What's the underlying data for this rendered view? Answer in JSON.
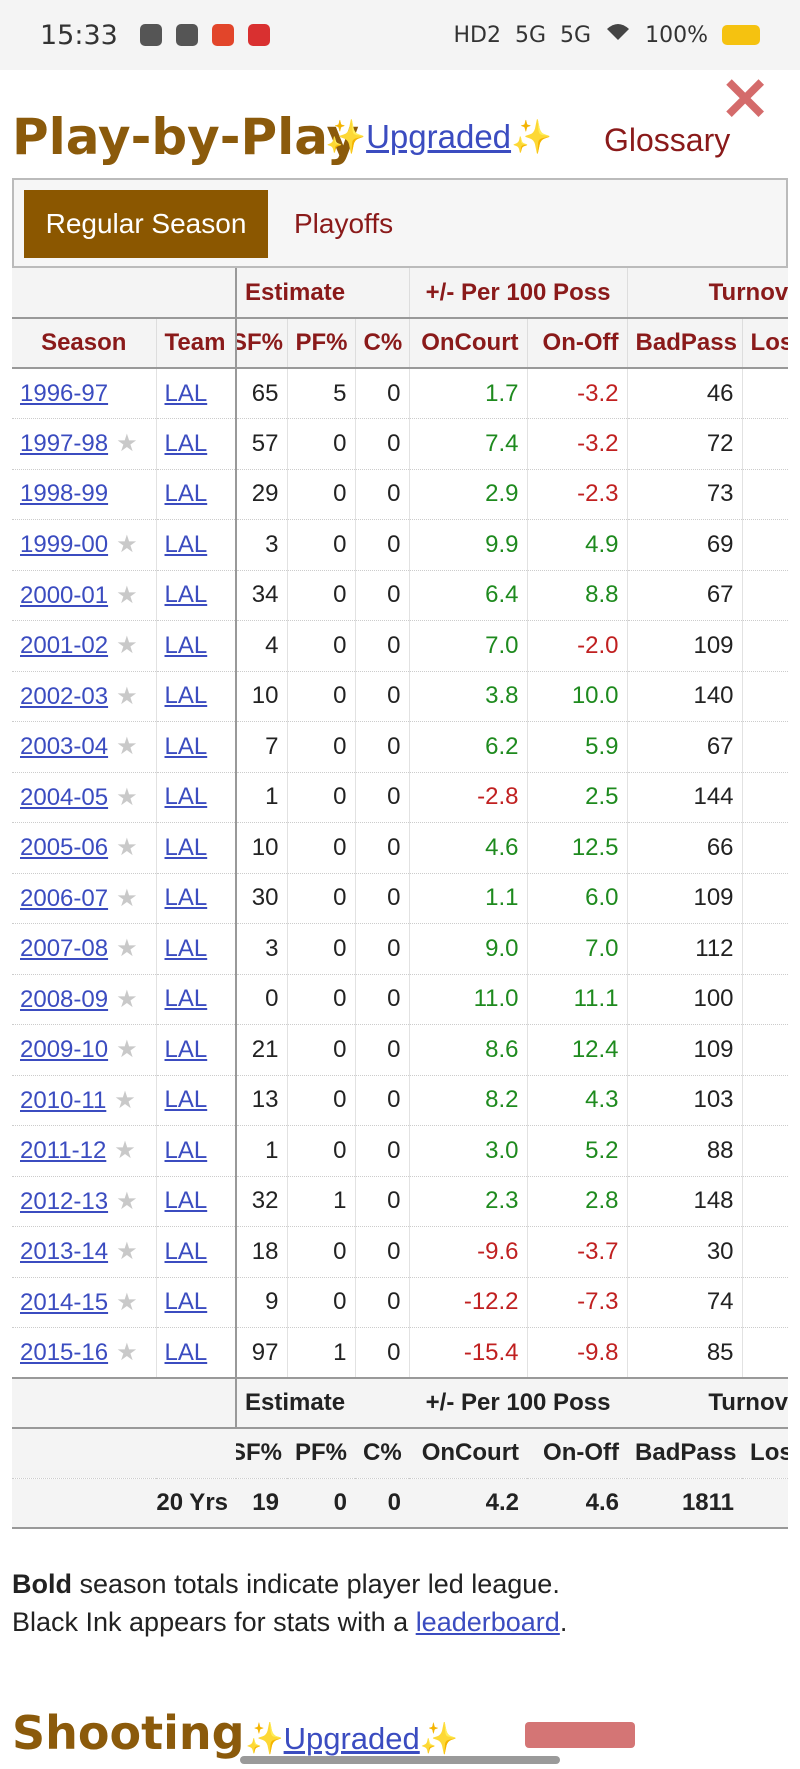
{
  "status": {
    "time": "15:33",
    "battery": "100%",
    "net1": "HD2",
    "net2": "5G",
    "net3": "5G"
  },
  "header": {
    "title": "Play-by-Play",
    "upgraded_prefix": "✨",
    "upgraded_label": "Upgraded",
    "upgraded_suffix": "✨",
    "glossary": "Glossary"
  },
  "tabs": {
    "regular": "Regular Season",
    "playoffs": "Playoffs"
  },
  "table": {
    "over_headers": {
      "estimate": "Estimate",
      "plusminus": "+/- Per 100 Poss",
      "turnover": "Turnover"
    },
    "columns": [
      "Season",
      "Team",
      "SF%",
      "PF%",
      "C%",
      "OnCourt",
      "On-Off",
      "BadPass",
      "Lost"
    ],
    "rows": [
      {
        "season": "1996-97",
        "star": "",
        "team": "LAL",
        "sf": "65",
        "pf": "5",
        "c": "0",
        "on": "1.7",
        "onoff": "-3.2",
        "bp": "46"
      },
      {
        "season": "1997-98",
        "star": "★",
        "team": "LAL",
        "sf": "57",
        "pf": "0",
        "c": "0",
        "on": "7.4",
        "onoff": "-3.2",
        "bp": "72"
      },
      {
        "season": "1998-99",
        "star": "",
        "team": "LAL",
        "sf": "29",
        "pf": "0",
        "c": "0",
        "on": "2.9",
        "onoff": "-2.3",
        "bp": "73"
      },
      {
        "season": "1999-00",
        "star": "★",
        "team": "LAL",
        "sf": "3",
        "pf": "0",
        "c": "0",
        "on": "9.9",
        "onoff": "4.9",
        "bp": "69"
      },
      {
        "season": "2000-01",
        "star": "★",
        "team": "LAL",
        "sf": "34",
        "pf": "0",
        "c": "0",
        "on": "6.4",
        "onoff": "8.8",
        "bp": "67"
      },
      {
        "season": "2001-02",
        "star": "★",
        "team": "LAL",
        "sf": "4",
        "pf": "0",
        "c": "0",
        "on": "7.0",
        "onoff": "-2.0",
        "bp": "109"
      },
      {
        "season": "2002-03",
        "star": "★",
        "team": "LAL",
        "sf": "10",
        "pf": "0",
        "c": "0",
        "on": "3.8",
        "onoff": "10.0",
        "bp": "140"
      },
      {
        "season": "2003-04",
        "star": "★",
        "team": "LAL",
        "sf": "7",
        "pf": "0",
        "c": "0",
        "on": "6.2",
        "onoff": "5.9",
        "bp": "67"
      },
      {
        "season": "2004-05",
        "star": "★",
        "team": "LAL",
        "sf": "1",
        "pf": "0",
        "c": "0",
        "on": "-2.8",
        "onoff": "2.5",
        "bp": "144"
      },
      {
        "season": "2005-06",
        "star": "★",
        "team": "LAL",
        "sf": "10",
        "pf": "0",
        "c": "0",
        "on": "4.6",
        "onoff": "12.5",
        "bp": "66"
      },
      {
        "season": "2006-07",
        "star": "★",
        "team": "LAL",
        "sf": "30",
        "pf": "0",
        "c": "0",
        "on": "1.1",
        "onoff": "6.0",
        "bp": "109"
      },
      {
        "season": "2007-08",
        "star": "★",
        "team": "LAL",
        "sf": "3",
        "pf": "0",
        "c": "0",
        "on": "9.0",
        "onoff": "7.0",
        "bp": "112"
      },
      {
        "season": "2008-09",
        "star": "★",
        "team": "LAL",
        "sf": "0",
        "pf": "0",
        "c": "0",
        "on": "11.0",
        "onoff": "11.1",
        "bp": "100"
      },
      {
        "season": "2009-10",
        "star": "★",
        "team": "LAL",
        "sf": "21",
        "pf": "0",
        "c": "0",
        "on": "8.6",
        "onoff": "12.4",
        "bp": "109"
      },
      {
        "season": "2010-11",
        "star": "★",
        "team": "LAL",
        "sf": "13",
        "pf": "0",
        "c": "0",
        "on": "8.2",
        "onoff": "4.3",
        "bp": "103"
      },
      {
        "season": "2011-12",
        "star": "★",
        "team": "LAL",
        "sf": "1",
        "pf": "0",
        "c": "0",
        "on": "3.0",
        "onoff": "5.2",
        "bp": "88"
      },
      {
        "season": "2012-13",
        "star": "★",
        "team": "LAL",
        "sf": "32",
        "pf": "1",
        "c": "0",
        "on": "2.3",
        "onoff": "2.8",
        "bp": "148"
      },
      {
        "season": "2013-14",
        "star": "★",
        "team": "LAL",
        "sf": "18",
        "pf": "0",
        "c": "0",
        "on": "-9.6",
        "onoff": "-3.7",
        "bp": "30"
      },
      {
        "season": "2014-15",
        "star": "★",
        "team": "LAL",
        "sf": "9",
        "pf": "0",
        "c": "0",
        "on": "-12.2",
        "onoff": "-7.3",
        "bp": "74"
      },
      {
        "season": "2015-16",
        "star": "★",
        "team": "LAL",
        "sf": "97",
        "pf": "1",
        "c": "0",
        "on": "-15.4",
        "onoff": "-9.8",
        "bp": "85"
      }
    ],
    "footer": {
      "over_headers": {
        "estimate": "Estimate",
        "plusminus": "+/- Per 100 Poss",
        "turnover": "Turnover"
      },
      "columns": [
        "SF%",
        "PF%",
        "C%",
        "OnCourt",
        "On-Off",
        "BadPass",
        "Lost"
      ],
      "total": {
        "label": "20 Yrs",
        "sf": "19",
        "pf": "0",
        "c": "0",
        "on": "4.2",
        "onoff": "4.6",
        "bp": "1811"
      }
    }
  },
  "note": {
    "bold": "Bold",
    "line1": " season totals indicate player led league.",
    "line2_prefix": "Black Ink appears for stats with a ",
    "line2_link": "leaderboard",
    "line2_suffix": "."
  },
  "shooting": {
    "title": "Shooting",
    "upgraded_prefix": "✨",
    "upgraded_label": "Upgraded",
    "upgraded_suffix": "✨"
  },
  "colors": {
    "brand": "#8b5a0b",
    "tab_active": "#8b5700",
    "header_red": "#8a1a1a",
    "link": "#3b4cc0",
    "positive": "#1e8a1e",
    "negative": "#c02020"
  }
}
